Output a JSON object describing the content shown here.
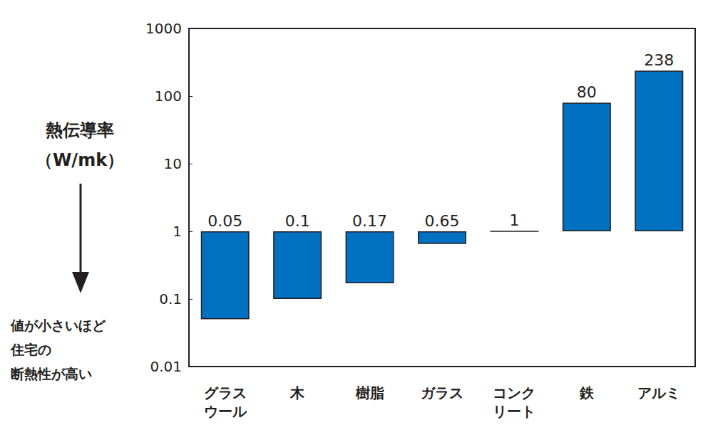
{
  "chart_data": {
    "type": "bar",
    "y_label": "熱伝導率\n（W/mk）",
    "annotation": "値が小さいほど\n住宅の\n断熱性が高い",
    "categories": [
      "グラス\nウール",
      "木",
      "樹脂",
      "ガラス",
      "コンク\nリート",
      "鉄",
      "アルミ"
    ],
    "values": [
      0.05,
      0.1,
      0.17,
      0.65,
      1,
      80,
      238
    ],
    "color": "#0070c0",
    "log": "y",
    "ylim": [
      0.01,
      1000
    ],
    "yticks": [
      0.01,
      0.1,
      1,
      10,
      100,
      1000
    ],
    "grid": false,
    "data_labels": true
  }
}
